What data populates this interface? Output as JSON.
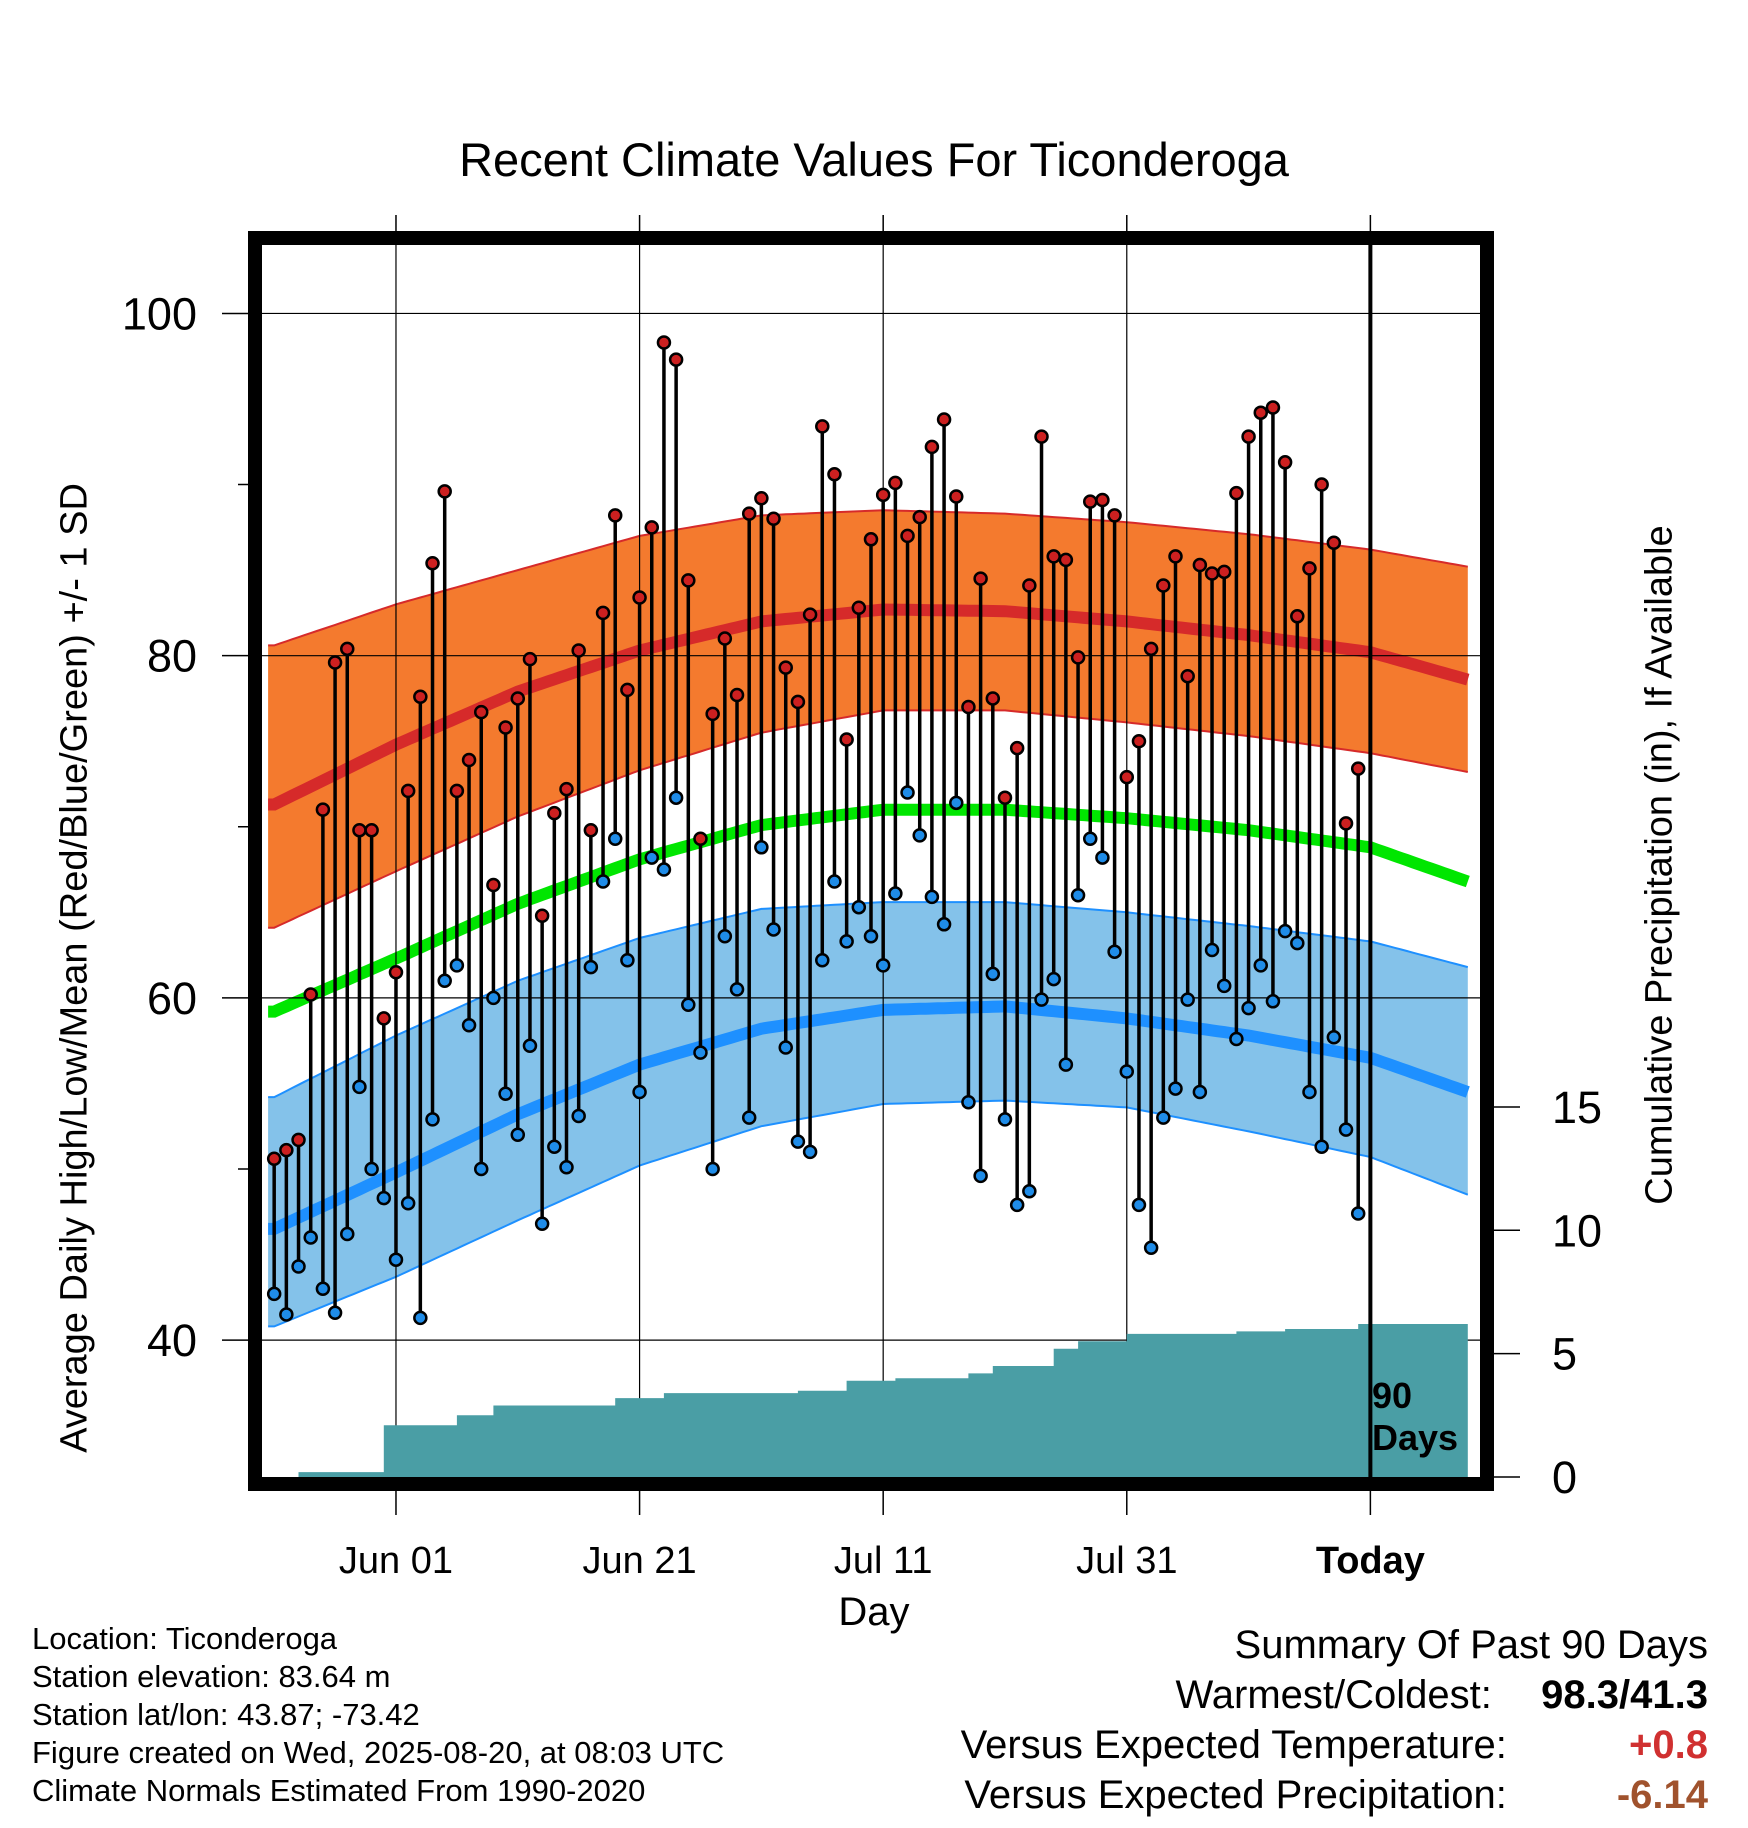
{
  "chart_data": {
    "type": "line",
    "title": "Recent Climate Values For Ticonderoga",
    "xlabel": "Day",
    "ylabel_left": "Average Daily High/Low/Mean (Red/Blue/Green) +/- 1 SD",
    "ylabel_right": "Cumulative Precipitation (in), If Available",
    "x_tick_labels": [
      "Jun 01",
      "Jun 21",
      "Jul 11",
      "Jul 31",
      "Today"
    ],
    "x_tick_days": [
      10,
      30,
      50,
      70,
      90
    ],
    "y_ticks_left": [
      40,
      60,
      80,
      100
    ],
    "y_ticks_right": [
      0,
      5,
      10,
      15
    ],
    "ylim_left": [
      32,
      104
    ],
    "xlim_days": [
      -1,
      99
    ],
    "grid": true,
    "window_label": "90 Days",
    "normals": {
      "days": [
        0,
        10,
        20,
        30,
        40,
        50,
        60,
        70,
        80,
        90,
        98
      ],
      "high_mean": [
        71.3,
        74.8,
        77.9,
        80.3,
        82.0,
        82.7,
        82.6,
        82.0,
        81.2,
        80.2,
        78.6
      ],
      "high_plus_sd": [
        80.6,
        83.0,
        85.0,
        87.0,
        88.2,
        88.5,
        88.3,
        87.8,
        87.1,
        86.2,
        85.2
      ],
      "high_minus_sd": [
        64.1,
        67.4,
        70.6,
        73.3,
        75.5,
        76.8,
        76.8,
        76.1,
        75.3,
        74.3,
        73.2
      ],
      "mean": [
        59.2,
        62.3,
        65.5,
        68.1,
        70.1,
        71.0,
        71.0,
        70.5,
        69.8,
        68.8,
        66.8
      ],
      "low_mean": [
        46.5,
        49.8,
        53.2,
        56.1,
        58.2,
        59.3,
        59.5,
        58.8,
        57.8,
        56.5,
        54.5
      ],
      "low_plus_sd": [
        54.2,
        57.8,
        61.0,
        63.5,
        65.2,
        65.6,
        65.6,
        65.0,
        64.2,
        63.3,
        61.8
      ],
      "low_minus_sd": [
        40.8,
        43.7,
        47.0,
        50.2,
        52.5,
        53.8,
        54.0,
        53.6,
        52.2,
        50.7,
        48.5
      ]
    },
    "series": [
      {
        "name": "High",
        "color": "#cc2020",
        "days": [
          0,
          1,
          2,
          3,
          4,
          5,
          6,
          7,
          8,
          9,
          10,
          11,
          12,
          13,
          14,
          15,
          16,
          17,
          18,
          19,
          20,
          21,
          22,
          23,
          24,
          25,
          26,
          27,
          28,
          29,
          30,
          31,
          32,
          33,
          34,
          35,
          36,
          37,
          38,
          39,
          40,
          41,
          42,
          43,
          44,
          45,
          46,
          47,
          48,
          49,
          50,
          51,
          52,
          53,
          54,
          55,
          56,
          57,
          58,
          59,
          60,
          61,
          62,
          63,
          64,
          65,
          66,
          67,
          68,
          69,
          70,
          71,
          72,
          73,
          74,
          75,
          76,
          77,
          78,
          79,
          80,
          81,
          82,
          83,
          84,
          85,
          86,
          87,
          88,
          89
        ],
        "values": [
          50.6,
          51.1,
          51.7,
          60.2,
          71.0,
          79.6,
          80.4,
          69.8,
          69.8,
          58.8,
          61.5,
          72.1,
          77.6,
          85.4,
          89.6,
          72.1,
          73.9,
          76.7,
          66.6,
          75.8,
          77.5,
          79.8,
          64.8,
          70.8,
          72.2,
          80.3,
          69.8,
          82.5,
          88.2,
          78.0,
          83.4,
          87.5,
          98.3,
          97.3,
          84.4,
          69.3,
          76.6,
          81.0,
          77.7,
          88.3,
          89.2,
          88.0,
          79.3,
          77.3,
          82.4,
          93.4,
          90.6,
          75.1,
          82.8,
          86.8,
          89.4,
          90.1,
          87.0,
          88.1,
          92.2,
          93.8,
          89.3,
          77.0,
          84.5,
          77.5,
          71.7,
          74.6,
          84.1,
          92.8,
          85.8,
          85.6,
          79.9,
          89.0,
          89.1,
          88.2,
          72.9,
          75.0,
          80.4,
          84.1,
          85.8,
          78.8,
          85.3,
          84.8,
          84.9,
          89.5,
          92.8,
          94.2,
          94.5,
          91.3,
          82.3,
          85.1,
          90.0,
          86.6,
          70.2,
          73.4
        ]
      },
      {
        "name": "Low",
        "color": "#1f8ce8",
        "days": [
          0,
          1,
          2,
          3,
          4,
          5,
          6,
          7,
          8,
          9,
          10,
          11,
          12,
          13,
          14,
          15,
          16,
          17,
          18,
          19,
          20,
          21,
          22,
          23,
          24,
          25,
          26,
          27,
          28,
          29,
          30,
          31,
          32,
          33,
          34,
          35,
          36,
          37,
          38,
          39,
          40,
          41,
          42,
          43,
          44,
          45,
          46,
          47,
          48,
          49,
          50,
          51,
          52,
          53,
          54,
          55,
          56,
          57,
          58,
          59,
          60,
          61,
          62,
          63,
          64,
          65,
          66,
          67,
          68,
          69,
          70,
          71,
          72,
          73,
          74,
          75,
          76,
          77,
          78,
          79,
          80,
          81,
          82,
          83,
          84,
          85,
          86,
          87,
          88,
          89
        ],
        "values": [
          42.7,
          41.5,
          44.3,
          46.0,
          43.0,
          41.6,
          46.2,
          54.8,
          50.0,
          48.3,
          44.7,
          48.0,
          41.3,
          52.9,
          61.0,
          61.9,
          58.4,
          50.0,
          60.0,
          54.4,
          52.0,
          57.2,
          46.8,
          51.3,
          50.1,
          53.1,
          61.8,
          66.8,
          69.3,
          62.2,
          54.5,
          68.2,
          67.5,
          71.7,
          59.6,
          56.8,
          50.0,
          63.6,
          60.5,
          53.0,
          68.8,
          64.0,
          57.1,
          51.6,
          51.0,
          62.2,
          66.8,
          63.3,
          65.3,
          63.6,
          61.9,
          66.1,
          72.0,
          69.5,
          65.9,
          64.3,
          71.4,
          53.9,
          49.6,
          61.4,
          52.9,
          47.9,
          48.7,
          59.9,
          61.1,
          56.1,
          66.0,
          69.3,
          68.2,
          62.7,
          55.7,
          47.9,
          45.4,
          53.0,
          54.7,
          59.9,
          54.5,
          62.8,
          60.7,
          57.6,
          59.4,
          61.9,
          59.8,
          63.9,
          63.2,
          54.5,
          51.3,
          57.7,
          52.3,
          47.4
        ]
      }
    ],
    "precipitation": {
      "days": [
        0,
        2,
        7,
        9,
        11,
        15,
        18,
        23,
        28,
        32,
        38,
        43,
        47,
        51,
        57,
        59,
        64,
        66,
        70,
        79,
        83,
        89,
        98
      ],
      "cumulative": [
        0.0,
        0.2,
        0.2,
        2.1,
        2.1,
        2.5,
        2.9,
        2.9,
        3.2,
        3.4,
        3.4,
        3.5,
        3.9,
        4.0,
        4.2,
        4.5,
        5.2,
        5.5,
        5.8,
        5.9,
        6.0,
        6.2,
        6.2
      ]
    }
  },
  "meta": {
    "location": "Location: Ticonderoga",
    "elevation": "Station elevation: 83.64 m",
    "latlon": "Station lat/lon: 43.87; -73.42",
    "created": "Figure created on Wed, 2025-08-20, at 08:03 UTC",
    "normals": "Climate Normals Estimated From 1990-2020"
  },
  "summary": {
    "heading": "Summary Of Past 90 Days",
    "warm_cold_label": "Warmest/Coldest:",
    "warm_cold_value": "98.3/41.3",
    "temp_label": "Versus Expected Temperature:",
    "temp_value": "+0.8",
    "temp_color": "#d03030",
    "precip_label": "Versus Expected Precipitation:",
    "precip_value": "-6.14",
    "precip_color": "#a0522d"
  },
  "colors": {
    "high_band": "#f47a2e",
    "high_line": "#d62a2a",
    "mean_line": "#00e600",
    "low_band": "#84c2ea",
    "low_line": "#1e90ff",
    "precip_fill": "#4a9ea5"
  }
}
